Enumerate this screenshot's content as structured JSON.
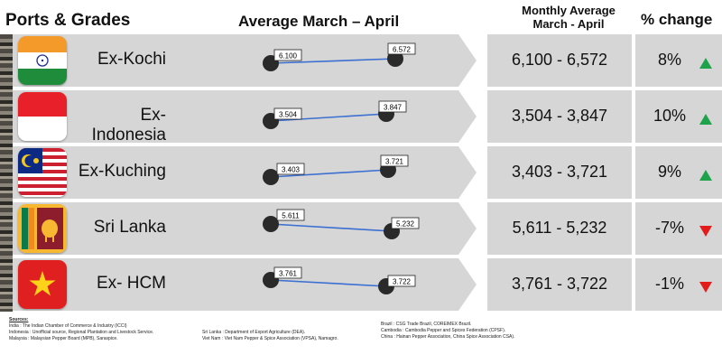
{
  "header": {
    "ports": "Ports & Grades",
    "average": "Average March – April",
    "monthly_line1": "Monthly Average",
    "monthly_line2": "March - April",
    "pct": "% change"
  },
  "rows": [
    {
      "port": "Ex-Kochi",
      "flag": "india-flag",
      "march": "6.100",
      "april": "6.572",
      "range": "6,100 - 6,572",
      "pct": "8%",
      "direction": "up"
    },
    {
      "port": "Ex-Indonesia",
      "flag": "indonesia-flag",
      "march": "3.504",
      "april": "3.847",
      "range": "3,504 - 3,847",
      "pct": "10%",
      "direction": "up"
    },
    {
      "port": "Ex-Kuching",
      "flag": "malaysia-flag",
      "march": "3.403",
      "april": "3.721",
      "range": "3,403 - 3,721",
      "pct": "9%",
      "direction": "up"
    },
    {
      "port": "Sri Lanka",
      "flag": "sri-lanka-flag",
      "march": "5.611",
      "april": "5.232",
      "range": "5,611 - 5,232",
      "pct": "-7%",
      "direction": "down"
    },
    {
      "port": "Ex- HCM",
      "flag": "vietnam-flag",
      "march": "3.761",
      "april": "3.722",
      "range": "3,761 - 3,722",
      "pct": "-1%",
      "direction": "down"
    }
  ],
  "colors": {
    "up": "#1fa34a",
    "down": "#e31b1b",
    "line": "#3b6fd1",
    "band": "#d6d6d6"
  },
  "sources": {
    "title": "Sources:",
    "col1": [
      "India : The Indian Chamber of Commerce & Industry (ICCI)",
      "Indonesia : Unofficial source, Regional Plantation and Livestock Service.",
      "Malaysia : Malaysian Pepper Board (MPB), Saraspice."
    ],
    "col2": [
      "Sri Lanka : Department of Export Agriculture (DEA).",
      "Viet Nam : Viet Nam Pepper & Spice Association (VPSA), Namagro."
    ],
    "col3": [
      "Brazil : CSG Trade Brazil, COREIMEX Brazil.",
      "Cambodia : Cambodia Pepper and Spices Federation (CPSF).",
      "China : Hainan Pepper Association, China Spice Association CSA)."
    ]
  }
}
